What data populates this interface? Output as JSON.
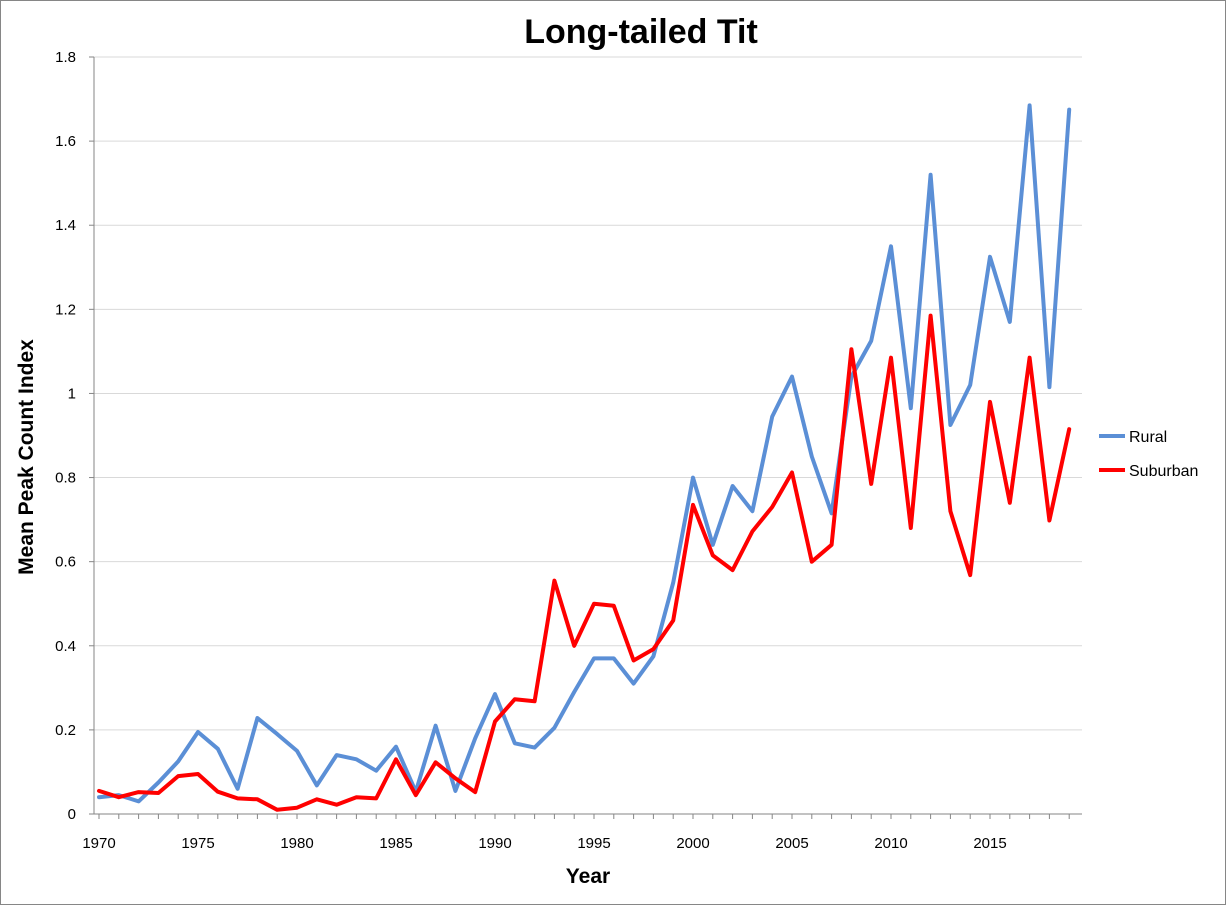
{
  "chart_data": {
    "type": "line",
    "title": "Long-tailed Tit",
    "xlabel": "Year",
    "ylabel": "Mean Peak Count Index",
    "xlim": [
      1970,
      2019
    ],
    "ylim": [
      0,
      1.8
    ],
    "x_ticks": [
      "1970",
      "1975",
      "1980",
      "1985",
      "1990",
      "1995",
      "2000",
      "2005",
      "2010",
      "2015"
    ],
    "y_ticks": [
      "0",
      "0.2",
      "0.4",
      "0.6",
      "0.8",
      "1",
      "1.2",
      "1.4",
      "1.6",
      "1.8"
    ],
    "grid": true,
    "legend_position": "right",
    "x": [
      1970,
      1971,
      1972,
      1973,
      1974,
      1975,
      1976,
      1977,
      1978,
      1979,
      1980,
      1981,
      1982,
      1983,
      1984,
      1985,
      1986,
      1987,
      1988,
      1989,
      1990,
      1991,
      1992,
      1993,
      1994,
      1995,
      1996,
      1997,
      1998,
      1999,
      2000,
      2001,
      2002,
      2003,
      2004,
      2005,
      2006,
      2007,
      2008,
      2009,
      2010,
      2011,
      2012,
      2013,
      2014,
      2015,
      2016,
      2017,
      2018,
      2019
    ],
    "series": [
      {
        "name": "Rural",
        "color": "#5b8fd6",
        "values": [
          0.04,
          0.045,
          0.03,
          0.075,
          0.125,
          0.195,
          0.155,
          0.06,
          0.228,
          0.19,
          0.15,
          0.068,
          0.14,
          0.13,
          0.103,
          0.16,
          0.053,
          0.21,
          0.055,
          0.18,
          0.285,
          0.168,
          0.158,
          0.205,
          0.29,
          0.37,
          0.37,
          0.31,
          0.375,
          0.55,
          0.8,
          0.64,
          0.78,
          0.72,
          0.945,
          1.04,
          0.85,
          0.715,
          1.04,
          1.125,
          1.35,
          0.965,
          1.52,
          0.925,
          1.02,
          1.325,
          1.17,
          1.685,
          1.015,
          1.675
        ]
      },
      {
        "name": "Suburban",
        "color": "#ff0000",
        "values": [
          0.055,
          0.04,
          0.052,
          0.05,
          0.09,
          0.095,
          0.053,
          0.037,
          0.035,
          0.01,
          0.015,
          0.035,
          0.022,
          0.04,
          0.037,
          0.13,
          0.045,
          0.123,
          0.085,
          0.052,
          0.22,
          0.273,
          0.268,
          0.555,
          0.4,
          0.5,
          0.495,
          0.365,
          0.392,
          0.46,
          0.735,
          0.615,
          0.58,
          0.672,
          0.73,
          0.812,
          0.6,
          0.64,
          1.105,
          0.785,
          1.085,
          0.68,
          1.185,
          0.72,
          0.568,
          0.98,
          0.74,
          1.085,
          0.698,
          0.915
        ]
      }
    ]
  }
}
